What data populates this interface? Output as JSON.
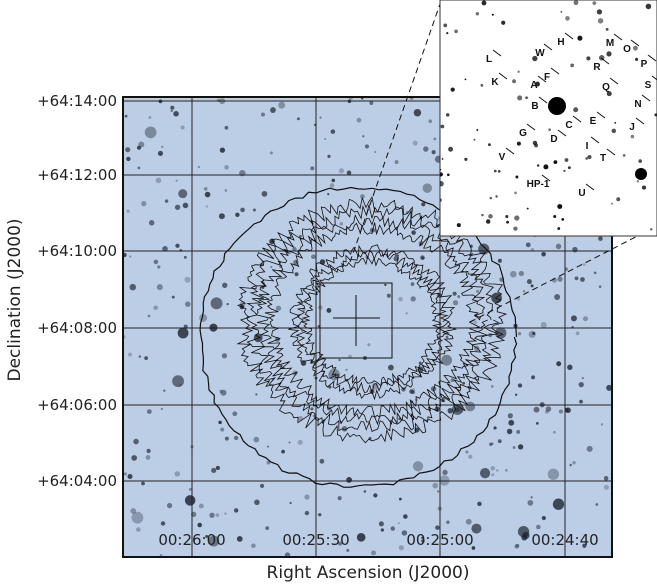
{
  "figure": {
    "x_axis": {
      "title": "Right Ascension (J2000)",
      "ticks": [
        "00:26:00",
        "00:25:30",
        "00:25:00",
        "00:24:40"
      ]
    },
    "y_axis": {
      "title": "Declination (J2000)",
      "ticks": [
        "+64:14:00",
        "+64:12:00",
        "+64:10:00",
        "+64:08:00",
        "+64:06:00",
        "+64:04:00"
      ]
    },
    "inset": {
      "labels": [
        "W",
        "H",
        "M",
        "O",
        "P",
        "L",
        "K",
        "R",
        "S",
        "F",
        "Q",
        "A",
        "N",
        "B",
        "E",
        "G",
        "C",
        "D",
        "J",
        "I",
        "V",
        "T",
        "HP-1",
        "U"
      ]
    }
  }
}
